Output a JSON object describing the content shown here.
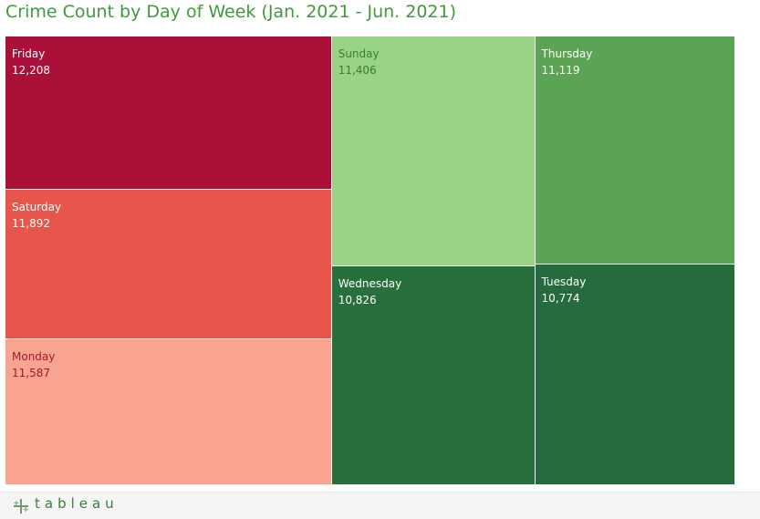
{
  "title": "Crime Count by Day of Week (Jan. 2021 - Jun. 2021)",
  "footer": {
    "brand": "tableau",
    "logo_icon": "tableau-plus-logo-icon"
  },
  "colors": {
    "title": "#3f9a3c",
    "Friday": "#aa1038",
    "Saturday": "#e8554b",
    "Monday": "#f8a491",
    "Sunday": "#98d386",
    "Thursday": "#5ba453",
    "Wednesday": "#27703c",
    "Tuesday": "#246b3d"
  },
  "chart_data": {
    "type": "treemap",
    "title": "Crime Count by Day of Week (Jan. 2021 - Jun. 2021)",
    "categories": [
      "Friday",
      "Saturday",
      "Monday",
      "Sunday",
      "Thursday",
      "Wednesday",
      "Tuesday"
    ],
    "values": [
      12208,
      11892,
      11587,
      11406,
      11119,
      10826,
      10774
    ],
    "value_labels": [
      "12,208",
      "11,892",
      "11,587",
      "11,406",
      "11,119",
      "10,826",
      "10,774"
    ],
    "color_scale": "diverging red-green"
  }
}
